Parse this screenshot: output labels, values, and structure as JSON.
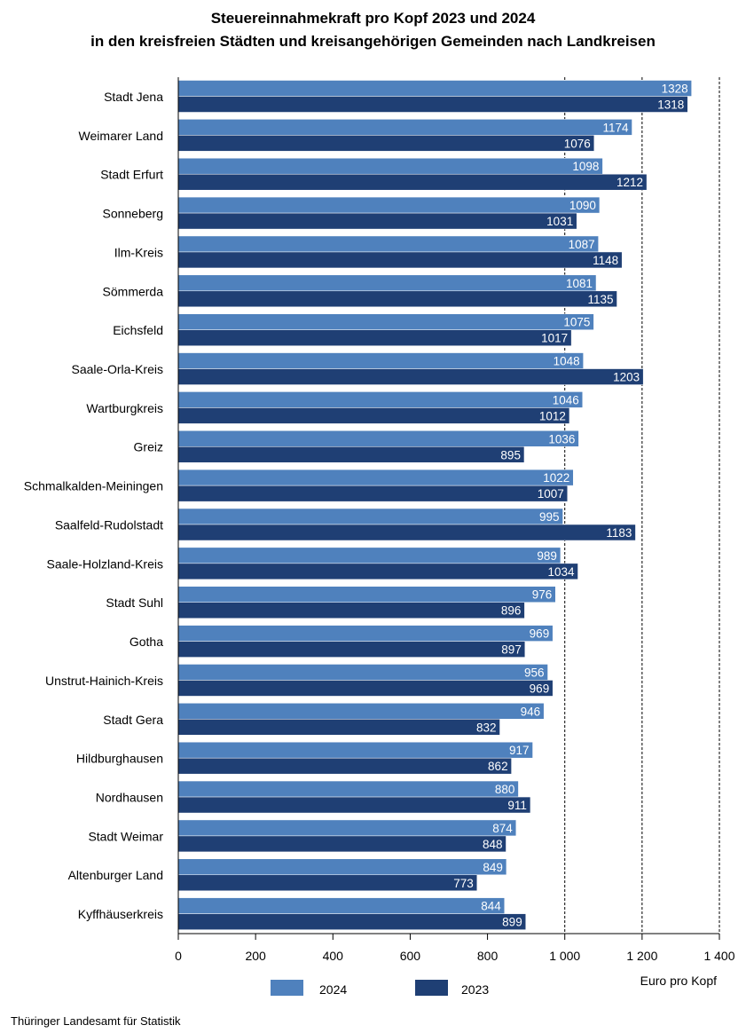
{
  "chart_data": {
    "type": "bar",
    "orientation": "horizontal",
    "title_lines": [
      "Steuereinnahmekraft pro Kopf 2023 und 2024",
      "in den kreisfreien Städten und kreisangehörigen Gemeinden nach Landkreisen"
    ],
    "categories": [
      "Stadt Jena",
      "Weimarer Land",
      "Stadt Erfurt",
      "Sonneberg",
      "Ilm-Kreis",
      "Sömmerda",
      "Eichsfeld",
      "Saale-Orla-Kreis",
      "Wartburgkreis",
      "Greiz",
      "Schmalkalden-Meiningen",
      "Saalfeld-Rudolstadt",
      "Saale-Holzland-Kreis",
      "Stadt Suhl",
      "Gotha",
      "Unstrut-Hainich-Kreis",
      "Stadt Gera",
      "Hildburghausen",
      "Nordhausen",
      "Stadt Weimar",
      "Altenburger Land",
      "Kyffhäuserkreis"
    ],
    "series": [
      {
        "name": "2024",
        "color": "#4f81bd",
        "values": [
          1328,
          1174,
          1098,
          1090,
          1087,
          1081,
          1075,
          1048,
          1046,
          1036,
          1022,
          995,
          989,
          976,
          969,
          956,
          946,
          917,
          880,
          874,
          849,
          844
        ]
      },
      {
        "name": "2023",
        "color": "#1f3f74",
        "values": [
          1318,
          1076,
          1212,
          1031,
          1148,
          1135,
          1017,
          1203,
          1012,
          895,
          1007,
          1183,
          1034,
          896,
          897,
          969,
          832,
          862,
          911,
          848,
          773,
          899
        ]
      }
    ],
    "xlim": [
      0,
      1400
    ],
    "xticks": [
      0,
      200,
      400,
      600,
      800,
      1000,
      1200,
      1400
    ],
    "xtick_labels": [
      "0",
      "200",
      "400",
      "600",
      "800",
      "1 000",
      "1 200",
      "1 400"
    ],
    "dashed_gridlines": [
      1000,
      1200,
      1400
    ],
    "xlabel": "Euro pro Kopf",
    "legend_position": "bottom"
  },
  "source": "Thüringer Landesamt für Statistik"
}
